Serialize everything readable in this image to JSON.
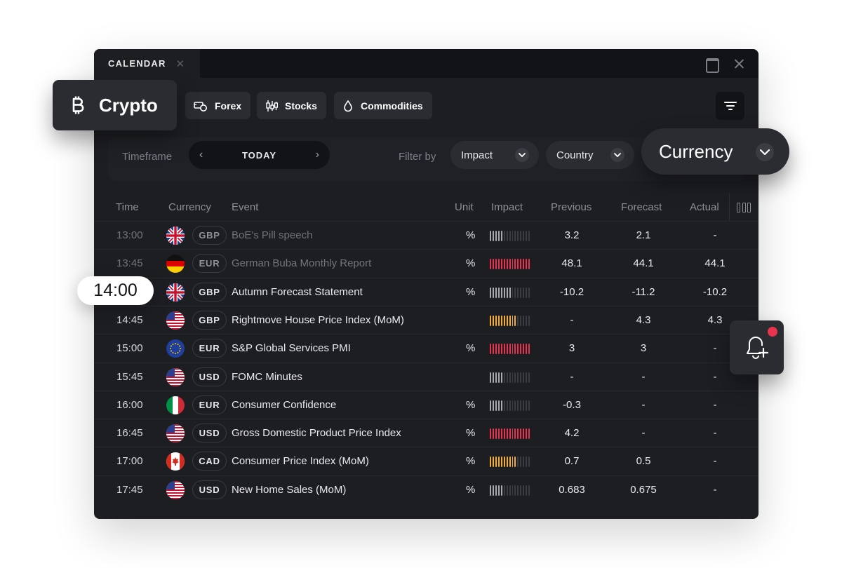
{
  "window": {
    "tab_label": "CALENDAR"
  },
  "categories": {
    "crypto": "Crypto",
    "forex": "Forex",
    "stocks": "Stocks",
    "commodities": "Commodities"
  },
  "toolbar": {
    "timeframe_label": "Timeframe",
    "timeframe_value": "TODAY",
    "filter_label": "Filter by",
    "impact": "Impact",
    "country": "Country",
    "currency": "Currency"
  },
  "columns": {
    "time": "Time",
    "currency": "Currency",
    "event": "Event",
    "unit": "Unit",
    "impact": "Impact",
    "previous": "Previous",
    "forecast": "Forecast",
    "actual": "Actual"
  },
  "highlight_time": "14:00",
  "colors": {
    "impact_low": "#a8aab0",
    "impact_medium": "#f3ab3c",
    "impact_high": "#e8334f",
    "impact_off": "#3a3c42",
    "notification": "#e8334f"
  },
  "rows": [
    {
      "time": "13:00",
      "flag": "uk",
      "currency": "GBP",
      "event": "BoE's Pill speech",
      "unit": "%",
      "impact": "low",
      "level": 5,
      "previous": "3.2",
      "forecast": "2.1",
      "actual": "-",
      "dim": true
    },
    {
      "time": "13:45",
      "flag": "de",
      "currency": "EUR",
      "event": "German Buba Monthly Report",
      "unit": "%",
      "impact": "high",
      "level": 15,
      "previous": "48.1",
      "forecast": "44.1",
      "actual": "44.1",
      "dim": true
    },
    {
      "time": "",
      "flag": "uk",
      "currency": "GBP",
      "event": "Autumn Forecast Statement",
      "unit": "%",
      "impact": "low",
      "level": 8,
      "previous": "-10.2",
      "forecast": "-11.2",
      "actual": "-10.2",
      "dim": false
    },
    {
      "time": "14:45",
      "flag": "us",
      "currency": "GBP",
      "event": "Rightmove House Price Index (MoM)",
      "unit": "",
      "impact": "medium",
      "level": 10,
      "previous": "-",
      "forecast": "4.3",
      "actual": "4.3",
      "dim": false
    },
    {
      "time": "15:00",
      "flag": "eu",
      "currency": "EUR",
      "event": "S&P Global Services PMI",
      "unit": "%",
      "impact": "high",
      "level": 15,
      "previous": "3",
      "forecast": "3",
      "actual": "-",
      "dim": false
    },
    {
      "time": "15:45",
      "flag": "us",
      "currency": "USD",
      "event": "FOMC Minutes",
      "unit": "",
      "impact": "low",
      "level": 5,
      "previous": "-",
      "forecast": "-",
      "actual": "-",
      "dim": false
    },
    {
      "time": "16:00",
      "flag": "it",
      "currency": "EUR",
      "event": "Consumer Confidence",
      "unit": "%",
      "impact": "low",
      "level": 5,
      "previous": "-0.3",
      "forecast": "-",
      "actual": "-",
      "dim": false
    },
    {
      "time": "16:45",
      "flag": "us",
      "currency": "USD",
      "event": "Gross Domestic Product Price Index",
      "unit": "%",
      "impact": "high",
      "level": 15,
      "previous": "4.2",
      "forecast": "-",
      "actual": "-",
      "dim": false
    },
    {
      "time": "17:00",
      "flag": "ca",
      "currency": "CAD",
      "event": "Consumer Price Index (MoM)",
      "unit": "%",
      "impact": "medium",
      "level": 10,
      "previous": "0.7",
      "forecast": "0.5",
      "actual": "-",
      "dim": false
    },
    {
      "time": "17:45",
      "flag": "us",
      "currency": "USD",
      "event": "New Home Sales (MoM)",
      "unit": "%",
      "impact": "low",
      "level": 5,
      "previous": "0.683",
      "forecast": "0.675",
      "actual": "-",
      "dim": false
    }
  ]
}
